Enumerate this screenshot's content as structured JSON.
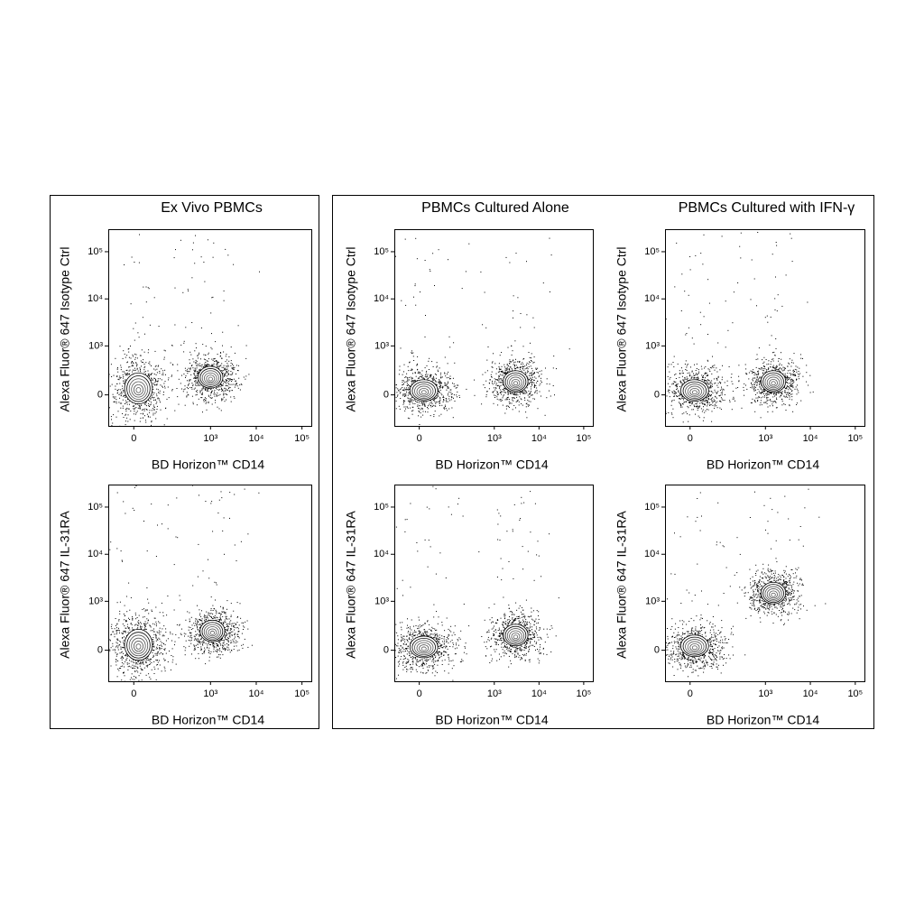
{
  "chart_data": [
    {
      "type": "contour",
      "title": "Ex Vivo PBMCs",
      "x_label": "BD Horizon™ CD14",
      "y_label": "Alexa Fluor® 647 Isotype Ctrl",
      "xlim": [
        -70,
        160000
      ],
      "ylim": [
        -400,
        300000
      ],
      "xticks": [
        0,
        {
          "value": 1000,
          "label": "10³"
        },
        {
          "value": 10000,
          "label": "10⁴"
        },
        {
          "value": 100000,
          "label": "10⁵"
        }
      ],
      "yticks": [
        0,
        {
          "value": 1000,
          "label": "10³"
        },
        {
          "value": 10000,
          "label": "10⁴"
        },
        {
          "value": 100000,
          "label": "10⁵"
        }
      ],
      "populations": [
        {
          "x": 10,
          "y": 60
        },
        {
          "x": 1000,
          "y": 180
        }
      ]
    },
    {
      "type": "contour",
      "x_label": "BD Horizon™ CD14",
      "y_label": "Alexa Fluor® 647 IL-31RA",
      "xlim": [
        -70,
        160000
      ],
      "ylim": [
        -400,
        300000
      ],
      "xticks": [
        0,
        {
          "value": 1000,
          "label": "10³"
        },
        {
          "value": 10000,
          "label": "10⁴"
        },
        {
          "value": 100000,
          "label": "10⁵"
        }
      ],
      "yticks": [
        0,
        {
          "value": 1000,
          "label": "10³"
        },
        {
          "value": 10000,
          "label": "10⁴"
        },
        {
          "value": 100000,
          "label": "10⁵"
        }
      ],
      "populations": [
        {
          "x": 10,
          "y": 50
        },
        {
          "x": 1100,
          "y": 200
        }
      ]
    },
    {
      "type": "contour",
      "title": "PBMCs Cultured Alone",
      "x_label": "BD Horizon™ CD14",
      "y_label": "Alexa Fluor® 647 Isotype Ctrl",
      "xlim": [
        -70,
        160000
      ],
      "ylim": [
        -400,
        300000
      ],
      "xticks": [
        0,
        {
          "value": 1000,
          "label": "10³"
        },
        {
          "value": 10000,
          "label": "10⁴"
        },
        {
          "value": 100000,
          "label": "10⁵"
        }
      ],
      "yticks": [
        0,
        {
          "value": 1000,
          "label": "10³"
        },
        {
          "value": 10000,
          "label": "10⁴"
        },
        {
          "value": 100000,
          "label": "10⁵"
        }
      ],
      "populations": [
        {
          "x": 10,
          "y": 40
        },
        {
          "x": 3000,
          "y": 130
        }
      ]
    },
    {
      "type": "contour",
      "x_label": "BD Horizon™ CD14",
      "y_label": "Alexa Fluor® 647 IL-31RA",
      "xlim": [
        -70,
        160000
      ],
      "ylim": [
        -400,
        300000
      ],
      "xticks": [
        0,
        {
          "value": 1000,
          "label": "10³"
        },
        {
          "value": 10000,
          "label": "10⁴"
        },
        {
          "value": 100000,
          "label": "10⁵"
        }
      ],
      "yticks": [
        0,
        {
          "value": 1000,
          "label": "10³"
        },
        {
          "value": 10000,
          "label": "10⁴"
        },
        {
          "value": 100000,
          "label": "10⁵"
        }
      ],
      "populations": [
        {
          "x": 10,
          "y": 30
        },
        {
          "x": 3000,
          "y": 150
        }
      ]
    },
    {
      "type": "contour",
      "title": "PBMCs Cultured with IFN-γ",
      "x_label": "BD Horizon™ CD14",
      "y_label": "Alexa Fluor® 647 Isotype Ctrl",
      "xlim": [
        -70,
        160000
      ],
      "ylim": [
        -400,
        300000
      ],
      "xticks": [
        0,
        {
          "value": 1000,
          "label": "10³"
        },
        {
          "value": 10000,
          "label": "10⁴"
        },
        {
          "value": 100000,
          "label": "10⁵"
        }
      ],
      "yticks": [
        0,
        {
          "value": 1000,
          "label": "10³"
        },
        {
          "value": 10000,
          "label": "10⁴"
        },
        {
          "value": 100000,
          "label": "10⁵"
        }
      ],
      "populations": [
        {
          "x": 10,
          "y": 40
        },
        {
          "x": 1500,
          "y": 130
        }
      ]
    },
    {
      "type": "contour",
      "x_label": "BD Horizon™ CD14",
      "y_label": "Alexa Fluor® 647 IL-31RA",
      "xlim": [
        -70,
        160000
      ],
      "ylim": [
        -400,
        300000
      ],
      "xticks": [
        0,
        {
          "value": 1000,
          "label": "10³"
        },
        {
          "value": 10000,
          "label": "10⁴"
        },
        {
          "value": 100000,
          "label": "10⁵"
        }
      ],
      "yticks": [
        0,
        {
          "value": 1000,
          "label": "10³"
        },
        {
          "value": 10000,
          "label": "10⁴"
        },
        {
          "value": 100000,
          "label": "10⁵"
        }
      ],
      "populations": [
        {
          "x": 10,
          "y": 40
        },
        {
          "x": 1500,
          "y": 1500
        }
      ]
    }
  ]
}
